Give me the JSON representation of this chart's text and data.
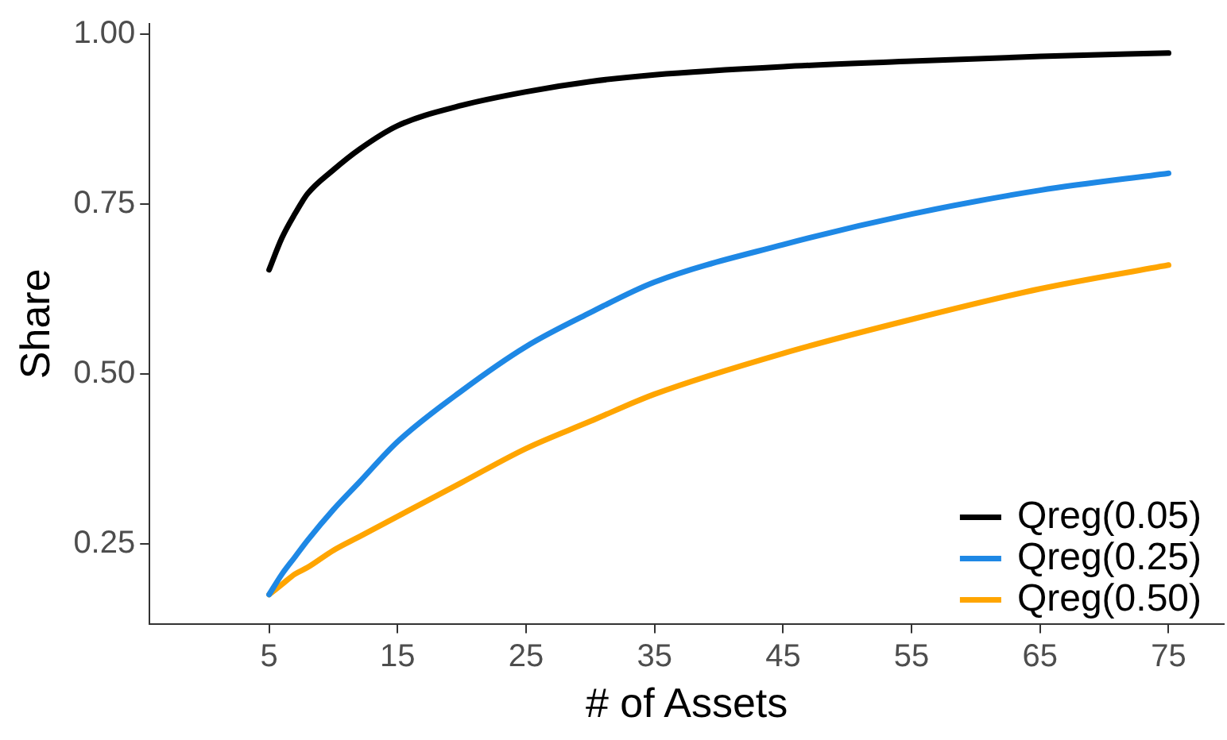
{
  "chart_data": {
    "type": "line",
    "xlabel": "# of Assets",
    "ylabel": "Share",
    "xlim": [
      -4.3,
      79.3
    ],
    "xticks": [
      5,
      15,
      25,
      35,
      45,
      55,
      65,
      75
    ],
    "ylim": [
      0.132,
      1.015
    ],
    "yticks": [
      {
        "value": 0.25,
        "label": "0.25"
      },
      {
        "value": 0.5,
        "label": "0.50"
      },
      {
        "value": 0.75,
        "label": "0.75"
      },
      {
        "value": 1,
        "label": "1.00"
      }
    ],
    "x": [
      5,
      6,
      7,
      8,
      10,
      12,
      15,
      20,
      25,
      30,
      35,
      45,
      55,
      65,
      75
    ],
    "series": [
      {
        "name": "Qreg(0.05)",
        "color": "#000000",
        "values": [
          0.653,
          0.7,
          0.735,
          0.765,
          0.8,
          0.83,
          0.865,
          0.895,
          0.915,
          0.93,
          0.94,
          0.952,
          0.96,
          0.967,
          0.972
        ]
      },
      {
        "name": "Qreg(0.25)",
        "color": "#1e88e5",
        "values": [
          0.175,
          0.205,
          0.23,
          0.255,
          0.3,
          0.34,
          0.4,
          0.475,
          0.54,
          0.59,
          0.635,
          0.69,
          0.735,
          0.77,
          0.795
        ]
      },
      {
        "name": "Qreg(0.50)",
        "color": "#ffa500",
        "values": [
          0.175,
          0.19,
          0.205,
          0.215,
          0.24,
          0.26,
          0.29,
          0.34,
          0.39,
          0.43,
          0.47,
          0.53,
          0.58,
          0.625,
          0.66
        ]
      }
    ],
    "legend": "bottom right",
    "grid": false,
    "marker": "none",
    "line_style": "solid"
  }
}
